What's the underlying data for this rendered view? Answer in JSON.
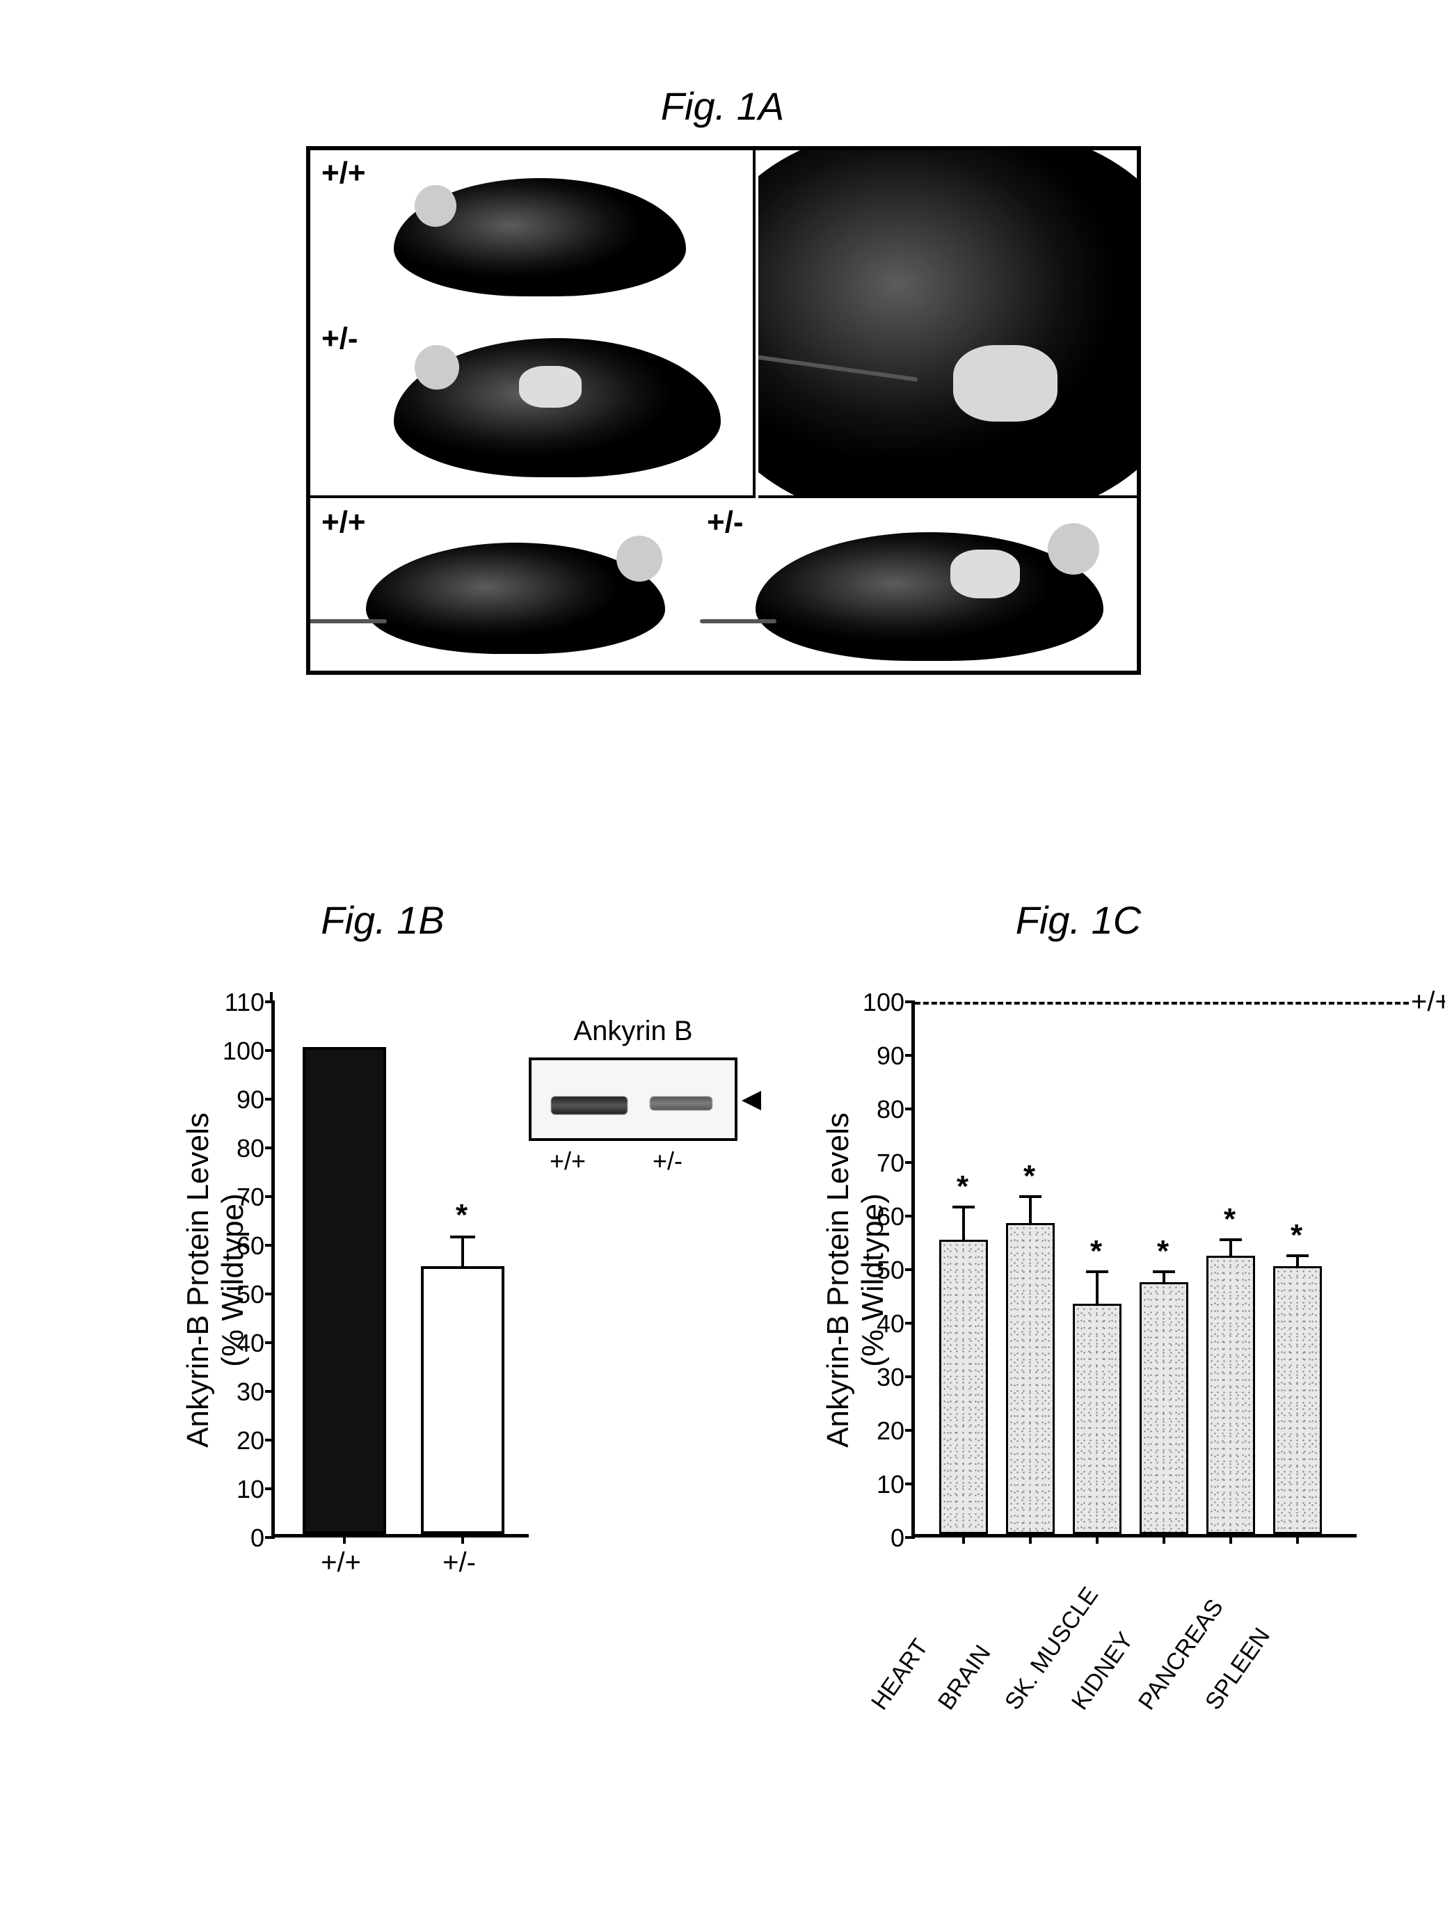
{
  "figA": {
    "title": "Fig. 1A",
    "labels": {
      "wt": "+/+",
      "het": "+/-"
    }
  },
  "figB": {
    "title": "Fig. 1B",
    "ylabel_line1": "Ankyrin-B Protein Levels",
    "ylabel_line2": "(% Wildtype)",
    "ylim": [
      0,
      110
    ],
    "ytick_step": 10,
    "yticks": [
      0,
      10,
      20,
      30,
      40,
      50,
      60,
      70,
      80,
      90,
      100,
      110
    ],
    "bars": [
      {
        "label": "+/+",
        "value": 100,
        "err": 0,
        "color": "#111111",
        "sig": false
      },
      {
        "label": "+/-",
        "value": 55,
        "err": 6,
        "color": "#ffffff",
        "sig": true
      }
    ],
    "inset": {
      "title": "Ankyrin B",
      "lanes": [
        "+/+",
        "+/-"
      ],
      "intensity": [
        1.0,
        0.6
      ]
    },
    "axis_color": "#000000",
    "background": "#ffffff"
  },
  "figC": {
    "title": "Fig. 1C",
    "ylabel_line1": "Ankyrin-B Protein Levels",
    "ylabel_line2": "(% Wildtype)",
    "ylim": [
      0,
      100
    ],
    "ytick_step": 10,
    "yticks": [
      0,
      10,
      20,
      30,
      40,
      50,
      60,
      70,
      80,
      90,
      100
    ],
    "ref_line": {
      "value": 100,
      "label": "+/+"
    },
    "bars": [
      {
        "label": "HEART",
        "value": 55,
        "err": 6,
        "sig": true
      },
      {
        "label": "BRAIN",
        "value": 58,
        "err": 5,
        "sig": true
      },
      {
        "label": "SK. MUSCLE",
        "value": 43,
        "err": 6,
        "sig": true
      },
      {
        "label": "KIDNEY",
        "value": 47,
        "err": 2,
        "sig": true
      },
      {
        "label": "PANCREAS",
        "value": 52,
        "err": 3,
        "sig": true
      },
      {
        "label": "SPLEEN",
        "value": 50,
        "err": 2,
        "sig": true
      }
    ],
    "bar_fill": "#e8e8e8",
    "axis_color": "#000000",
    "background": "#ffffff"
  }
}
